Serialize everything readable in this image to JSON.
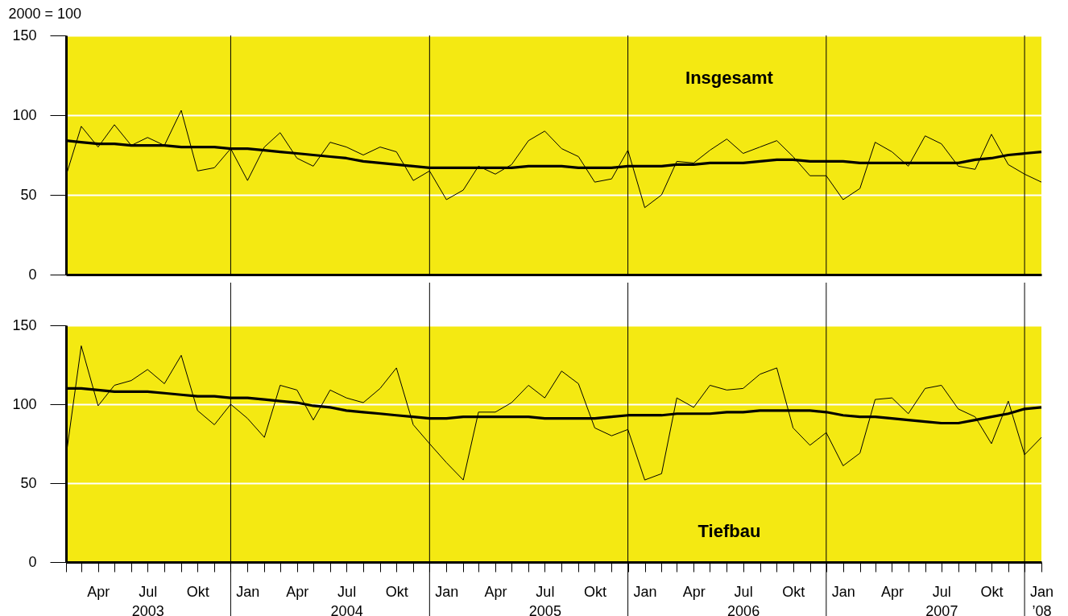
{
  "chart_data": [
    {
      "type": "line",
      "title": "Insgesamt",
      "ylabel": "2000 = 100",
      "grid": "y",
      "tick_labels": "y",
      "xlim": [
        "2003-02",
        "2008-01"
      ],
      "ylim": [
        0,
        150
      ],
      "yticks": [
        0,
        50,
        100,
        150
      ],
      "x": [
        "2003-02",
        "2003-03",
        "2003-04",
        "2003-05",
        "2003-06",
        "2003-07",
        "2003-08",
        "2003-09",
        "2003-10",
        "2003-11",
        "2003-12",
        "2004-01",
        "2004-02",
        "2004-03",
        "2004-04",
        "2004-05",
        "2004-06",
        "2004-07",
        "2004-08",
        "2004-09",
        "2004-10",
        "2004-11",
        "2004-12",
        "2005-01",
        "2005-02",
        "2005-03",
        "2005-04",
        "2005-05",
        "2005-06",
        "2005-07",
        "2005-08",
        "2005-09",
        "2005-10",
        "2005-11",
        "2005-12",
        "2006-01",
        "2006-02",
        "2006-03",
        "2006-04",
        "2006-05",
        "2006-06",
        "2006-07",
        "2006-08",
        "2006-09",
        "2006-10",
        "2006-11",
        "2006-12",
        "2007-01",
        "2007-02",
        "2007-03",
        "2007-04",
        "2007-05",
        "2007-06",
        "2007-07",
        "2007-08",
        "2007-09",
        "2007-10",
        "2007-11",
        "2007-12",
        "2008-01"
      ],
      "series": [
        {
          "color": "#000000",
          "values": [
            62,
            93,
            80,
            94,
            81,
            86,
            81,
            103,
            65,
            67,
            79,
            59,
            80,
            89,
            73,
            68,
            83,
            80,
            75,
            80,
            77,
            59,
            65,
            47,
            53,
            68,
            63,
            69,
            84,
            90,
            79,
            74,
            58,
            60,
            78,
            42,
            50,
            71,
            70,
            78,
            85,
            76,
            80,
            84,
            74,
            62,
            62,
            47,
            54,
            83,
            77,
            68,
            87,
            82,
            68,
            66,
            88,
            69,
            63,
            58
          ]
        },
        {
          "color": "#000000",
          "values": [
            84,
            83,
            82,
            82,
            81,
            81,
            81,
            80,
            80,
            80,
            79,
            79,
            78,
            77,
            76,
            75,
            74,
            73,
            71,
            70,
            69,
            68,
            67,
            67,
            67,
            67,
            67,
            67,
            68,
            68,
            68,
            67,
            67,
            67,
            68,
            68,
            68,
            69,
            69,
            70,
            70,
            70,
            71,
            72,
            72,
            71,
            71,
            71,
            70,
            70,
            70,
            70,
            70,
            70,
            70,
            72,
            73,
            75,
            76,
            77
          ]
        }
      ],
      "ref_lines": [
        {
          "axis": "x",
          "value": "2003-12"
        },
        {
          "axis": "x",
          "value": "2004-12"
        },
        {
          "axis": "x",
          "value": "2005-12"
        },
        {
          "axis": "x",
          "value": "2006-12"
        },
        {
          "axis": "x",
          "value": "2007-12"
        }
      ]
    },
    {
      "type": "line",
      "title": "Tiefbau",
      "grid": "y",
      "xlim": [
        "2003-02",
        "2008-01"
      ],
      "ylim": [
        0,
        150
      ],
      "yticks": [
        0,
        50,
        100,
        150
      ],
      "x": [
        "2003-02",
        "2003-03",
        "2003-04",
        "2003-05",
        "2003-06",
        "2003-07",
        "2003-08",
        "2003-09",
        "2003-10",
        "2003-11",
        "2003-12",
        "2004-01",
        "2004-02",
        "2004-03",
        "2004-04",
        "2004-05",
        "2004-06",
        "2004-07",
        "2004-08",
        "2004-09",
        "2004-10",
        "2004-11",
        "2004-12",
        "2005-01",
        "2005-02",
        "2005-03",
        "2005-04",
        "2005-05",
        "2005-06",
        "2005-07",
        "2005-08",
        "2005-09",
        "2005-10",
        "2005-11",
        "2005-12",
        "2006-01",
        "2006-02",
        "2006-03",
        "2006-04",
        "2006-05",
        "2006-06",
        "2006-07",
        "2006-08",
        "2006-09",
        "2006-10",
        "2006-11",
        "2006-12",
        "2007-01",
        "2007-02",
        "2007-03",
        "2007-04",
        "2007-05",
        "2007-06",
        "2007-07",
        "2007-08",
        "2007-09",
        "2007-10",
        "2007-11",
        "2007-12",
        "2008-01"
      ],
      "xticks": [
        {
          "value": "2003-02",
          "label": null
        },
        {
          "value": "2003-03",
          "label": null
        },
        {
          "value": "2003-04",
          "label": "Apr"
        },
        {
          "value": "2003-05",
          "label": null
        },
        {
          "value": "2003-06",
          "label": null
        },
        {
          "value": "2003-07",
          "label": "Jul\n2003"
        },
        {
          "value": "2003-08",
          "label": null
        },
        {
          "value": "2003-09",
          "label": null
        },
        {
          "value": "2003-10",
          "label": "Okt"
        },
        {
          "value": "2003-11",
          "label": null
        },
        {
          "value": "2003-12",
          "label": null
        },
        {
          "value": "2004-01",
          "label": "Jan"
        },
        {
          "value": "2004-02",
          "label": null
        },
        {
          "value": "2004-03",
          "label": null
        },
        {
          "value": "2004-04",
          "label": "Apr"
        },
        {
          "value": "2004-05",
          "label": null
        },
        {
          "value": "2004-06",
          "label": null
        },
        {
          "value": "2004-07",
          "label": "Jul\n2004"
        },
        {
          "value": "2004-08",
          "label": null
        },
        {
          "value": "2004-09",
          "label": null
        },
        {
          "value": "2004-10",
          "label": "Okt"
        },
        {
          "value": "2004-11",
          "label": null
        },
        {
          "value": "2004-12",
          "label": null
        },
        {
          "value": "2005-01",
          "label": "Jan"
        },
        {
          "value": "2005-02",
          "label": null
        },
        {
          "value": "2005-03",
          "label": null
        },
        {
          "value": "2005-04",
          "label": "Apr"
        },
        {
          "value": "2005-05",
          "label": null
        },
        {
          "value": "2005-06",
          "label": null
        },
        {
          "value": "2005-07",
          "label": "Jul\n2005"
        },
        {
          "value": "2005-08",
          "label": null
        },
        {
          "value": "2005-09",
          "label": null
        },
        {
          "value": "2005-10",
          "label": "Okt"
        },
        {
          "value": "2005-11",
          "label": null
        },
        {
          "value": "2005-12",
          "label": null
        },
        {
          "value": "2006-01",
          "label": "Jan"
        },
        {
          "value": "2006-02",
          "label": null
        },
        {
          "value": "2006-03",
          "label": null
        },
        {
          "value": "2006-04",
          "label": "Apr"
        },
        {
          "value": "2006-05",
          "label": null
        },
        {
          "value": "2006-06",
          "label": null
        },
        {
          "value": "2006-07",
          "label": "Jul\n2006"
        },
        {
          "value": "2006-08",
          "label": null
        },
        {
          "value": "2006-09",
          "label": null
        },
        {
          "value": "2006-10",
          "label": "Okt"
        },
        {
          "value": "2006-11",
          "label": null
        },
        {
          "value": "2006-12",
          "label": null
        },
        {
          "value": "2007-01",
          "label": "Jan"
        },
        {
          "value": "2007-02",
          "label": null
        },
        {
          "value": "2007-03",
          "label": null
        },
        {
          "value": "2007-04",
          "label": "Apr"
        },
        {
          "value": "2007-05",
          "label": null
        },
        {
          "value": "2007-06",
          "label": null
        },
        {
          "value": "2007-07",
          "label": "Jul\n2007"
        },
        {
          "value": "2007-08",
          "label": null
        },
        {
          "value": "2007-09",
          "label": null
        },
        {
          "value": "2007-10",
          "label": "Okt"
        },
        {
          "value": "2007-11",
          "label": null
        },
        {
          "value": "2007-12",
          "label": null
        },
        {
          "value": "2008-01",
          "label": "Jan\n’08"
        }
      ],
      "series": [
        {
          "color": "#000000",
          "values": [
            67,
            137,
            99,
            112,
            115,
            122,
            113,
            131,
            96,
            87,
            100,
            91,
            79,
            112,
            109,
            90,
            109,
            104,
            101,
            110,
            123,
            87,
            75,
            63,
            52,
            95,
            95,
            101,
            112,
            104,
            121,
            113,
            85,
            80,
            84,
            52,
            56,
            104,
            98,
            112,
            109,
            110,
            119,
            123,
            85,
            74,
            82,
            61,
            69,
            103,
            104,
            94,
            110,
            112,
            97,
            92,
            75,
            102,
            68,
            79
          ]
        },
        {
          "color": "#000000",
          "values": [
            110,
            110,
            109,
            108,
            108,
            108,
            107,
            106,
            105,
            105,
            104,
            104,
            103,
            102,
            101,
            99,
            98,
            96,
            95,
            94,
            93,
            92,
            91,
            91,
            92,
            92,
            92,
            92,
            92,
            91,
            91,
            91,
            91,
            92,
            93,
            93,
            93,
            94,
            94,
            94,
            95,
            95,
            96,
            96,
            96,
            96,
            95,
            93,
            92,
            92,
            91,
            90,
            89,
            88,
            88,
            90,
            92,
            94,
            97,
            98
          ]
        }
      ],
      "ref_lines": [
        {
          "axis": "x",
          "value": "2003-12"
        },
        {
          "axis": "x",
          "value": "2004-12"
        },
        {
          "axis": "x",
          "value": "2005-12"
        },
        {
          "axis": "x",
          "value": "2006-12"
        },
        {
          "axis": "x",
          "value": "2007-12"
        }
      ]
    }
  ]
}
